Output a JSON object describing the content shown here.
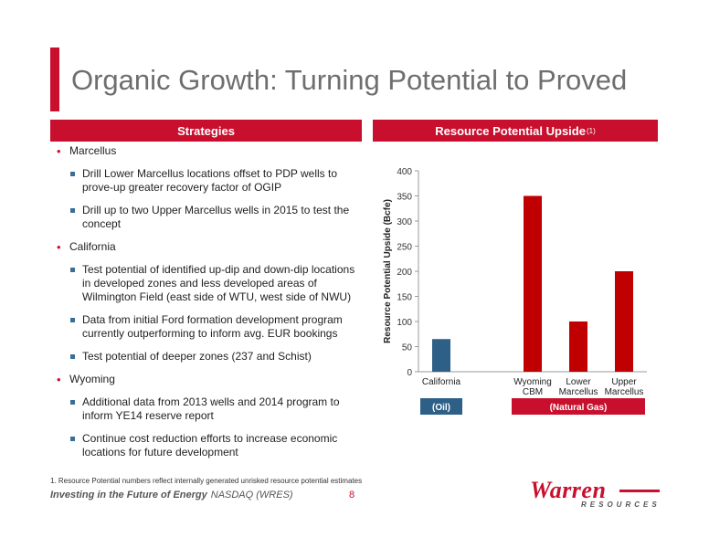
{
  "title": "Organic Growth: Turning Potential to Proved",
  "strategies": {
    "header": "Strategies",
    "sections": [
      {
        "label": "Marcellus",
        "items": [
          "Drill Lower Marcellus locations offset to PDP wells to prove-up greater recovery factor of OGIP",
          "Drill up to two Upper Marcellus wells in 2015 to test the concept"
        ]
      },
      {
        "label": "California",
        "items": [
          "Test potential of identified up-dip and down-dip locations in developed zones and less developed areas of Wilmington Field (east side of WTU, west side of NWU)",
          "Data from initial Ford formation development program currently outperforming to inform avg. EUR bookings",
          "Test potential of deeper zones (237 and Schist)"
        ]
      },
      {
        "label": "Wyoming",
        "items": [
          "Additional data from 2013 wells and 2014 program to inform YE14 reserve report",
          "Continue cost reduction efforts to increase economic locations for future development"
        ]
      }
    ]
  },
  "resource": {
    "header": "Resource Potential Upside",
    "header_sup": "(1)"
  },
  "chart_data": {
    "type": "bar",
    "title": "",
    "ylabel": "Resource Potential Upside (Bcfe)",
    "ylim": [
      0,
      400
    ],
    "yticks": [
      0,
      50,
      100,
      150,
      200,
      250,
      300,
      350,
      400
    ],
    "categories": [
      [
        "California"
      ],
      [],
      [
        "Wyoming",
        "CBM"
      ],
      [
        "Lower",
        "Marcellus"
      ],
      [
        "Upper",
        "Marcellus"
      ]
    ],
    "values": [
      65,
      null,
      350,
      100,
      200
    ],
    "bar_colors": [
      "#2e5f86",
      null,
      "#c00000",
      "#c00000",
      "#c00000"
    ],
    "groups": [
      {
        "label": "(Oil)",
        "from": 0,
        "to": 0,
        "color": "#2e5f86"
      },
      {
        "label": "(Natural Gas)",
        "from": 2,
        "to": 4,
        "color": "#c8102e"
      }
    ]
  },
  "footnote": "1. Resource Potential numbers reflect internally generated unrisked resource potential estimates",
  "tagline": "Investing in the Future of Energy",
  "ticker": "NASDAQ (WRES)",
  "page_number": "8",
  "logo": {
    "name": "Warren",
    "sub": "RESOURCES"
  },
  "colors": {
    "accent": "#c8102e",
    "oil": "#2e5f86",
    "gas": "#c00000"
  }
}
